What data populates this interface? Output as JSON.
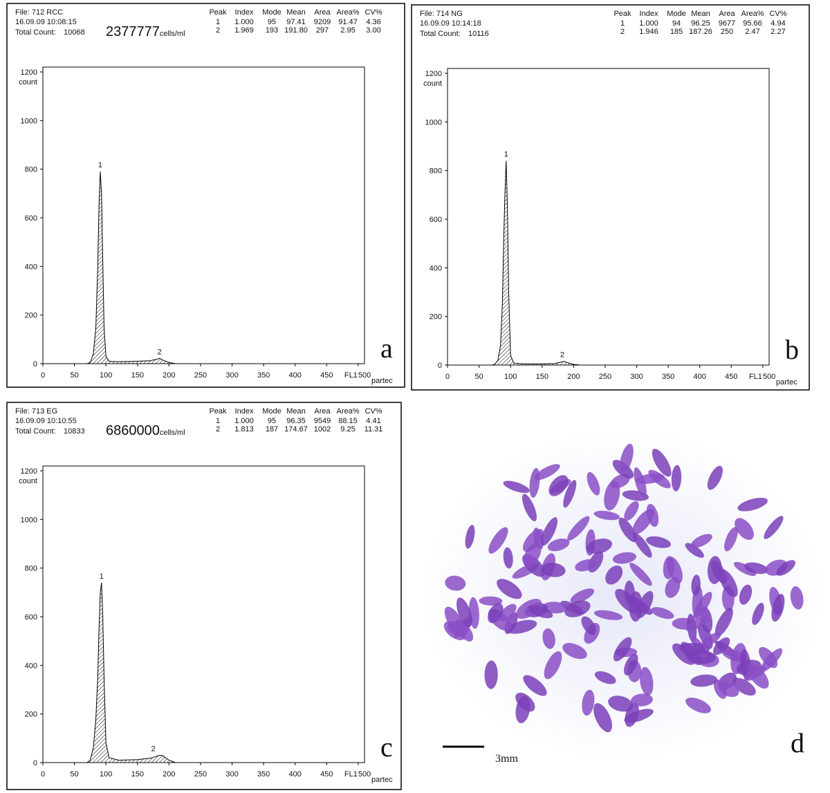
{
  "chart_data": [
    {
      "type": "area",
      "panel_label": "a",
      "file": "File: 712 RCC",
      "timestamp": "16.09.09 10:08:15",
      "total_count_label": "Total Count:",
      "total_count": 10068,
      "concentration": 2377777,
      "concentration_unit": "cells/ml",
      "stats": {
        "columns": [
          "Peak",
          "Index",
          "Mode",
          "Mean",
          "Area",
          "Area%",
          "CV%"
        ],
        "rows": [
          [
            "1",
            "1.000",
            "95",
            "97.41",
            "9209",
            "91.47",
            "4.36"
          ],
          [
            "2",
            "1.969",
            "193",
            "191.80",
            "297",
            "2.95",
            "3.00"
          ]
        ]
      },
      "x": [
        0,
        70,
        75,
        80,
        84,
        87,
        89,
        91,
        93,
        95,
        97,
        100,
        105,
        120,
        150,
        170,
        180,
        185,
        190,
        200,
        210,
        500
      ],
      "values": [
        0,
        0,
        5,
        40,
        150,
        400,
        650,
        790,
        700,
        420,
        150,
        30,
        10,
        8,
        10,
        12,
        18,
        22,
        15,
        5,
        0,
        0
      ],
      "color": "#000000",
      "xlim": [
        0,
        510
      ],
      "ylim": [
        0,
        1220
      ],
      "xticks": [
        0,
        50,
        100,
        150,
        200,
        250,
        300,
        350,
        400,
        450,
        500
      ],
      "yticks": [
        0,
        200,
        400,
        600,
        800,
        1000,
        1200
      ],
      "y_label": "count",
      "x_label": "FL1",
      "brand": "partec",
      "annotations": [
        {
          "text": "1",
          "x": 91,
          "y": 790
        },
        {
          "text": "2",
          "x": 185,
          "y": 22
        }
      ]
    },
    {
      "type": "area",
      "panel_label": "b",
      "file": "File: 714 NG",
      "timestamp": "16.09.09 10:14:18",
      "total_count_label": "Total Count:",
      "total_count": 10116,
      "stats": {
        "columns": [
          "Peak",
          "Index",
          "Mode",
          "Mean",
          "Area",
          "Area%",
          "CV%"
        ],
        "rows": [
          [
            "1",
            "1.000",
            "94",
            "96.25",
            "9677",
            "95.66",
            "4.94"
          ],
          [
            "2",
            "1.946",
            "185",
            "187.26",
            "250",
            "2.47",
            "2.27"
          ]
        ]
      },
      "x": [
        0,
        70,
        75,
        80,
        84,
        87,
        89,
        91,
        93,
        95,
        97,
        100,
        105,
        120,
        150,
        170,
        180,
        185,
        190,
        200,
        210,
        500
      ],
      "values": [
        0,
        0,
        3,
        20,
        80,
        250,
        500,
        700,
        840,
        650,
        300,
        40,
        8,
        5,
        5,
        6,
        12,
        15,
        10,
        3,
        0,
        0
      ],
      "color": "#000000",
      "xlim": [
        0,
        510
      ],
      "ylim": [
        0,
        1220
      ],
      "xticks": [
        0,
        50,
        100,
        150,
        200,
        250,
        300,
        350,
        400,
        450,
        500
      ],
      "yticks": [
        0,
        200,
        400,
        600,
        800,
        1000,
        1200
      ],
      "y_label": "count",
      "x_label": "FL1",
      "brand": "partec",
      "annotations": [
        {
          "text": "1",
          "x": 93,
          "y": 840
        },
        {
          "text": "2",
          "x": 182,
          "y": 15
        }
      ]
    },
    {
      "type": "area",
      "panel_label": "c",
      "file": "File: 713 EG",
      "timestamp": "16.09.09 10:10:55",
      "total_count_label": "Total Count:",
      "total_count": 10833,
      "concentration": 6860000,
      "concentration_unit": "cells/ml",
      "stats": {
        "columns": [
          "Peak",
          "Index",
          "Mode",
          "Mean",
          "Area",
          "Area%",
          "CV%"
        ],
        "rows": [
          [
            "1",
            "1.000",
            "95",
            "96.35",
            "9549",
            "88.15",
            "4.41"
          ],
          [
            "2",
            "1.813",
            "187",
            "174.67",
            "1002",
            "9.25",
            "11.31"
          ]
        ]
      },
      "x": [
        0,
        70,
        75,
        80,
        84,
        87,
        89,
        91,
        93,
        95,
        97,
        100,
        105,
        120,
        150,
        170,
        180,
        185,
        190,
        200,
        210,
        500
      ],
      "values": [
        0,
        0,
        10,
        60,
        180,
        350,
        550,
        700,
        740,
        600,
        350,
        80,
        20,
        10,
        12,
        18,
        25,
        30,
        28,
        10,
        0,
        0
      ],
      "color": "#000000",
      "xlim": [
        0,
        510
      ],
      "ylim": [
        0,
        1220
      ],
      "xticks": [
        0,
        50,
        100,
        150,
        200,
        250,
        300,
        350,
        400,
        450,
        500
      ],
      "yticks": [
        0,
        200,
        400,
        600,
        800,
        1000,
        1200
      ],
      "y_label": "count",
      "x_label": "FL1",
      "brand": "partec",
      "annotations": [
        {
          "text": "1",
          "x": 93,
          "y": 740
        },
        {
          "text": "2",
          "x": 175,
          "y": 30
        }
      ]
    }
  ],
  "image_panel": {
    "panel_label": "d",
    "scale_bar_label": "3mm"
  }
}
